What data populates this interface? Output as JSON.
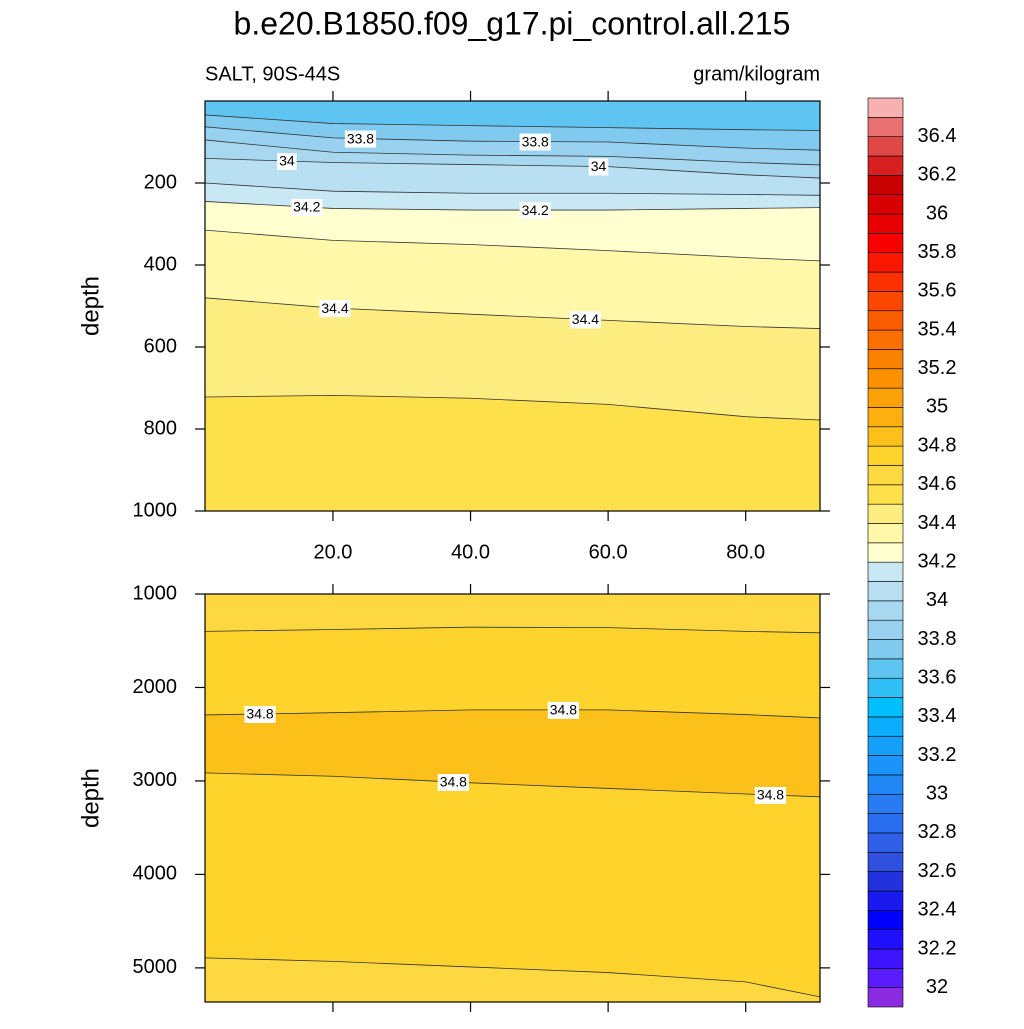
{
  "chart_data": {
    "type": "contour",
    "title": "b.e20.B1850.f09_g17.pi_control.all.215",
    "subtitle_left": "SALT, 90S-44S",
    "subtitle_right": "gram/kilogram",
    "x": [
      1.4,
      20,
      40,
      60,
      80,
      90.8
    ],
    "xlim": [
      1.4,
      90.8
    ],
    "xticks": [
      {
        "value": 20,
        "label": "20.0"
      },
      {
        "value": 40,
        "label": "40.0"
      },
      {
        "value": 60,
        "label": "60.0"
      },
      {
        "value": 80,
        "label": "80.0"
      }
    ],
    "panels": [
      {
        "ylabel": "depth",
        "ylim": [
          0,
          1000
        ],
        "yticks": [
          200,
          400,
          600,
          800,
          1000
        ],
        "y_reversed": true,
        "fill": "#5ec5f2",
        "contours": [
          {
            "level": 33.7,
            "depth": [
              34,
              55,
              60,
              65,
              70,
              72
            ],
            "fill_below": "#80caf0"
          },
          {
            "level": 33.8,
            "depth": [
              63,
              90,
              98,
              100,
              115,
              120
            ],
            "fill_below": "#98d2f0",
            "label_x": [
              24,
              49.4
            ]
          },
          {
            "level": 33.9,
            "depth": [
              95,
              125,
              132,
              135,
              150,
              156
            ],
            "fill_below": "#a8d8f0"
          },
          {
            "level": 34,
            "depth": [
              140,
              150,
              155,
              160,
              180,
              188
            ],
            "fill_below": "#b8e0f2",
            "label_x": [
              13.3,
              58.6
            ]
          },
          {
            "level": 34.1,
            "depth": [
              200,
              220,
              225,
              225,
              228,
              230
            ],
            "fill_below": "#c8e8f4"
          },
          {
            "level": 34.2,
            "depth": [
              245,
              262,
              266,
              266,
              262,
              260
            ],
            "fill_below": "#ffffd0",
            "label_x": [
              16.2,
              49.4
            ]
          },
          {
            "level": 34.3,
            "depth": [
              315,
              340,
              350,
              365,
              382,
              390
            ],
            "fill_below": "#fff8a8"
          },
          {
            "level": 34.4,
            "depth": [
              480,
              505,
              520,
              535,
              550,
              555
            ],
            "fill_below": "#fdec80",
            "label_x": [
              20.3,
              56.7
            ]
          },
          {
            "level": 34.5,
            "depth": [
              722,
              718,
              725,
              740,
              770,
              778
            ],
            "fill_below": "#fde04a"
          }
        ]
      },
      {
        "ylabel": "depth",
        "ylim": [
          1000,
          5365
        ],
        "yticks": [
          1000,
          2000,
          3000,
          4000,
          5000
        ],
        "y_reversed": true,
        "fill": "#fdd840",
        "contours": [
          {
            "level": 34.7,
            "depth": [
              1400,
              1380,
              1355,
              1360,
              1400,
              1415
            ],
            "fill_below": "#fdd32c"
          },
          {
            "level": 34.8,
            "depth": [
              2294,
              2270,
              2240,
              2240,
              2290,
              2326
            ],
            "fill_below": "#fbc01a",
            "label_x": [
              9.4,
              53.5
            ]
          },
          {
            "level": 34.8,
            "depth": [
              2914,
              2950,
              3020,
              3080,
              3140,
              3170
            ],
            "fill_below": "#fdd32c",
            "label_x": [
              37.5,
              83.6
            ]
          },
          {
            "level": 34.7,
            "depth": [
              4893,
              4930,
              4990,
              5050,
              5150,
              5310
            ],
            "fill_below": "#fdd840"
          }
        ]
      }
    ],
    "colorbar": {
      "levels": [
        32,
        32.1,
        32.2,
        32.3,
        32.4,
        32.5,
        32.6,
        32.7,
        32.8,
        32.9,
        33,
        33.1,
        33.2,
        33.3,
        33.4,
        33.5,
        33.6,
        33.7,
        33.8,
        33.9,
        34,
        34.1,
        34.2,
        34.3,
        34.4,
        34.5,
        34.6,
        34.7,
        34.8,
        34.9,
        35,
        35.1,
        35.2,
        35.3,
        35.4,
        35.5,
        35.6,
        35.7,
        35.8,
        35.9,
        36,
        36.1,
        36.2,
        36.3,
        36.4,
        36.5
      ],
      "colors": [
        "#8a2be2",
        "#5a1cff",
        "#3c14ff",
        "#2010ff",
        "#0000ff",
        "#1a1aee",
        "#2233dd",
        "#3050e0",
        "#3060e8",
        "#2a6ef0",
        "#2a7af2",
        "#2088f5",
        "#1a94f8",
        "#14a0fa",
        "#0aaefc",
        "#00bfff",
        "#30c0f5",
        "#5ec5f2",
        "#80caf0",
        "#98d2f0",
        "#a8d8f0",
        "#b8e0f2",
        "#c8e8f4",
        "#ffffd0",
        "#fff8a8",
        "#fdec80",
        "#fde04a",
        "#fdd840",
        "#fdd32c",
        "#fbc01a",
        "#fbb010",
        "#fba208",
        "#fb9000",
        "#fa8000",
        "#fa7000",
        "#fa5c00",
        "#fa4800",
        "#fa3000",
        "#fa1800",
        "#f80000",
        "#e80000",
        "#d80000",
        "#c80000",
        "#d82020",
        "#e04848",
        "#e87070",
        "#f8b0b0"
      ],
      "ticks": [
        32,
        32.2,
        32.4,
        32.6,
        32.8,
        33,
        33.2,
        33.4,
        33.6,
        33.8,
        34,
        34.2,
        34.4,
        34.6,
        34.8,
        35,
        35.2,
        35.4,
        35.6,
        35.8,
        36,
        36.2,
        36.4
      ]
    }
  }
}
